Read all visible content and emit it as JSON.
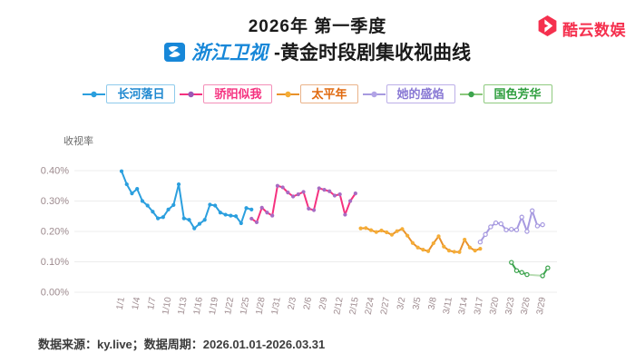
{
  "header": {
    "title_line1": "2026年 第一季度",
    "channel": "浙江卫视",
    "title_suffix": "-黄金时段剧集收视曲线",
    "brand": "酷云数娱",
    "brand_color": "#f5304e",
    "channel_color": "#1787d8"
  },
  "footer": {
    "text": "数据来源：ky.live；数据周期：2026.01.01-2026.03.31"
  },
  "legend": {
    "items": [
      {
        "label": "长河落日",
        "text_color": "#1e88d0",
        "border_color": "#8ecaec",
        "marker_line": "#2b9fde",
        "marker_dot": "#2b9fde"
      },
      {
        "label": "骄阳似我",
        "text_color": "#f5317f",
        "border_color": "#f48fb8",
        "marker_line": "#f5317f",
        "marker_dot": "#9b59b6"
      },
      {
        "label": "太平年",
        "text_color": "#e06a10",
        "border_color": "#eab389",
        "marker_line": "#e8912b",
        "marker_dot": "#f5ad36"
      },
      {
        "label": "她的盛焰",
        "text_color": "#8878d4",
        "border_color": "#bcafe8",
        "marker_line": "#a79ae0",
        "marker_dot": "#b2a4e6"
      },
      {
        "label": "国色芳华",
        "text_color": "#2e9e3e",
        "border_color": "#8fca7f",
        "marker_line": "#8cc87c",
        "marker_dot": "#3da44e"
      }
    ]
  },
  "chart_data": {
    "type": "line",
    "title": "2026年第一季度 浙江卫视-黄金时段剧集收视曲线",
    "ylabel": "收视率",
    "xlabel": "",
    "y_ticks": [
      "0.40%",
      "0.30%",
      "0.20%",
      "0.10%",
      "0.00%"
    ],
    "ylim": [
      0,
      0.4
    ],
    "grid": "horizontal-only",
    "legend_position": "top",
    "x_tick_labels": [
      "1/1",
      "1/4",
      "1/7",
      "1/10",
      "1/13",
      "1/16",
      "1/19",
      "1/22",
      "1/25",
      "1/28",
      "1/31",
      "2/3",
      "2/6",
      "2/9",
      "2/12",
      "2/15",
      "2/24",
      "2/27",
      "3/2",
      "3/5",
      "3/8",
      "3/11",
      "3/14",
      "3/17",
      "3/20",
      "3/23",
      "3/26",
      "3/29"
    ],
    "x_tick_step": 3,
    "x_total_categories": 84,
    "unit": "percent",
    "series": [
      {
        "name": "长河落日",
        "color": "#2b9fde",
        "marker_fill": "#2b9fde",
        "start_index": 0,
        "values": [
          0.398,
          0.355,
          0.325,
          0.34,
          0.3,
          0.285,
          0.265,
          0.243,
          0.247,
          0.272,
          0.287,
          0.355,
          0.243,
          0.238,
          0.21,
          0.225,
          0.238,
          0.288,
          0.285,
          0.262,
          0.255,
          0.252,
          0.25,
          0.227,
          0.277,
          0.272
        ]
      },
      {
        "name": "骄阳似我",
        "color": "#f5317f",
        "marker_fill": "#a76bc2",
        "start_index": 25,
        "values": [
          0.242,
          0.23,
          0.278,
          0.262,
          0.252,
          0.35,
          0.345,
          0.328,
          0.315,
          0.322,
          0.33,
          0.275,
          0.27,
          0.342,
          0.337,
          0.332,
          0.318,
          0.322,
          0.255,
          0.3,
          0.325
        ]
      },
      {
        "name": "太平年",
        "color": "#e8912b",
        "marker_fill": "#f5ad36",
        "start_index": 46,
        "values": [
          0.21,
          0.211,
          0.204,
          0.198,
          0.203,
          0.197,
          0.189,
          0.201,
          0.208,
          0.186,
          0.162,
          0.147,
          0.14,
          0.135,
          0.161,
          0.184,
          0.15,
          0.137,
          0.133,
          0.132,
          0.173,
          0.147,
          0.137,
          0.143
        ]
      },
      {
        "name": "她的盛焰",
        "color": "#a79ae0",
        "marker_fill": "#ffffff",
        "marker_stroke": "#a79ae0",
        "start_index": 69,
        "values": [
          0.165,
          0.19,
          0.215,
          0.228,
          0.225,
          0.205,
          0.207,
          0.205,
          0.247,
          0.2,
          0.268,
          0.218,
          0.222
        ]
      },
      {
        "name": "国色芳华",
        "color": "#3da44e",
        "gap_color": "#b9ddb4",
        "marker_fill": "#ffffff",
        "marker_stroke": "#3da44e",
        "points": [
          [
            75,
            0.098
          ],
          [
            76,
            0.071
          ],
          [
            77,
            0.065
          ],
          [
            78,
            0.058
          ],
          [
            81,
            0.054
          ],
          [
            82,
            0.08
          ]
        ]
      }
    ]
  }
}
